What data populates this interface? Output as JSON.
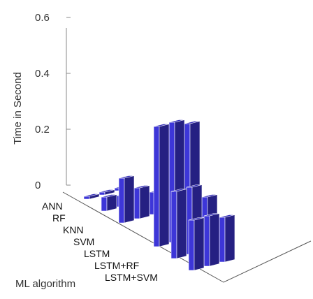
{
  "chart_data": {
    "type": "bar",
    "subtype": "3d-bar",
    "title": "",
    "ylabel": "Time in Second",
    "xlabel": "ML algorithm",
    "ylim": [
      0,
      0.6
    ],
    "yticks": [
      0,
      0.2,
      0.4,
      0.6
    ],
    "ytick_labels": [
      "0",
      "0.2",
      "0.4",
      "0.6"
    ],
    "categories": [
      "ANN",
      "RF",
      "KNN",
      "SVM",
      "LSTM",
      "LSTM+RF",
      "LSTM+SVM"
    ],
    "series": [
      {
        "values": [
          0.01,
          0.05,
          0.16,
          0.0,
          0.43,
          0.24,
          0.18
        ]
      },
      {
        "values": [
          0.01,
          0.04,
          0.11,
          0.0,
          0.43,
          0.24,
          0.18
        ]
      },
      {
        "values": [
          0.01,
          0.04,
          0.08,
          0.01,
          0.41,
          0.19,
          0.16
        ]
      }
    ],
    "grid": false,
    "bar_color": "#3d36d8"
  }
}
